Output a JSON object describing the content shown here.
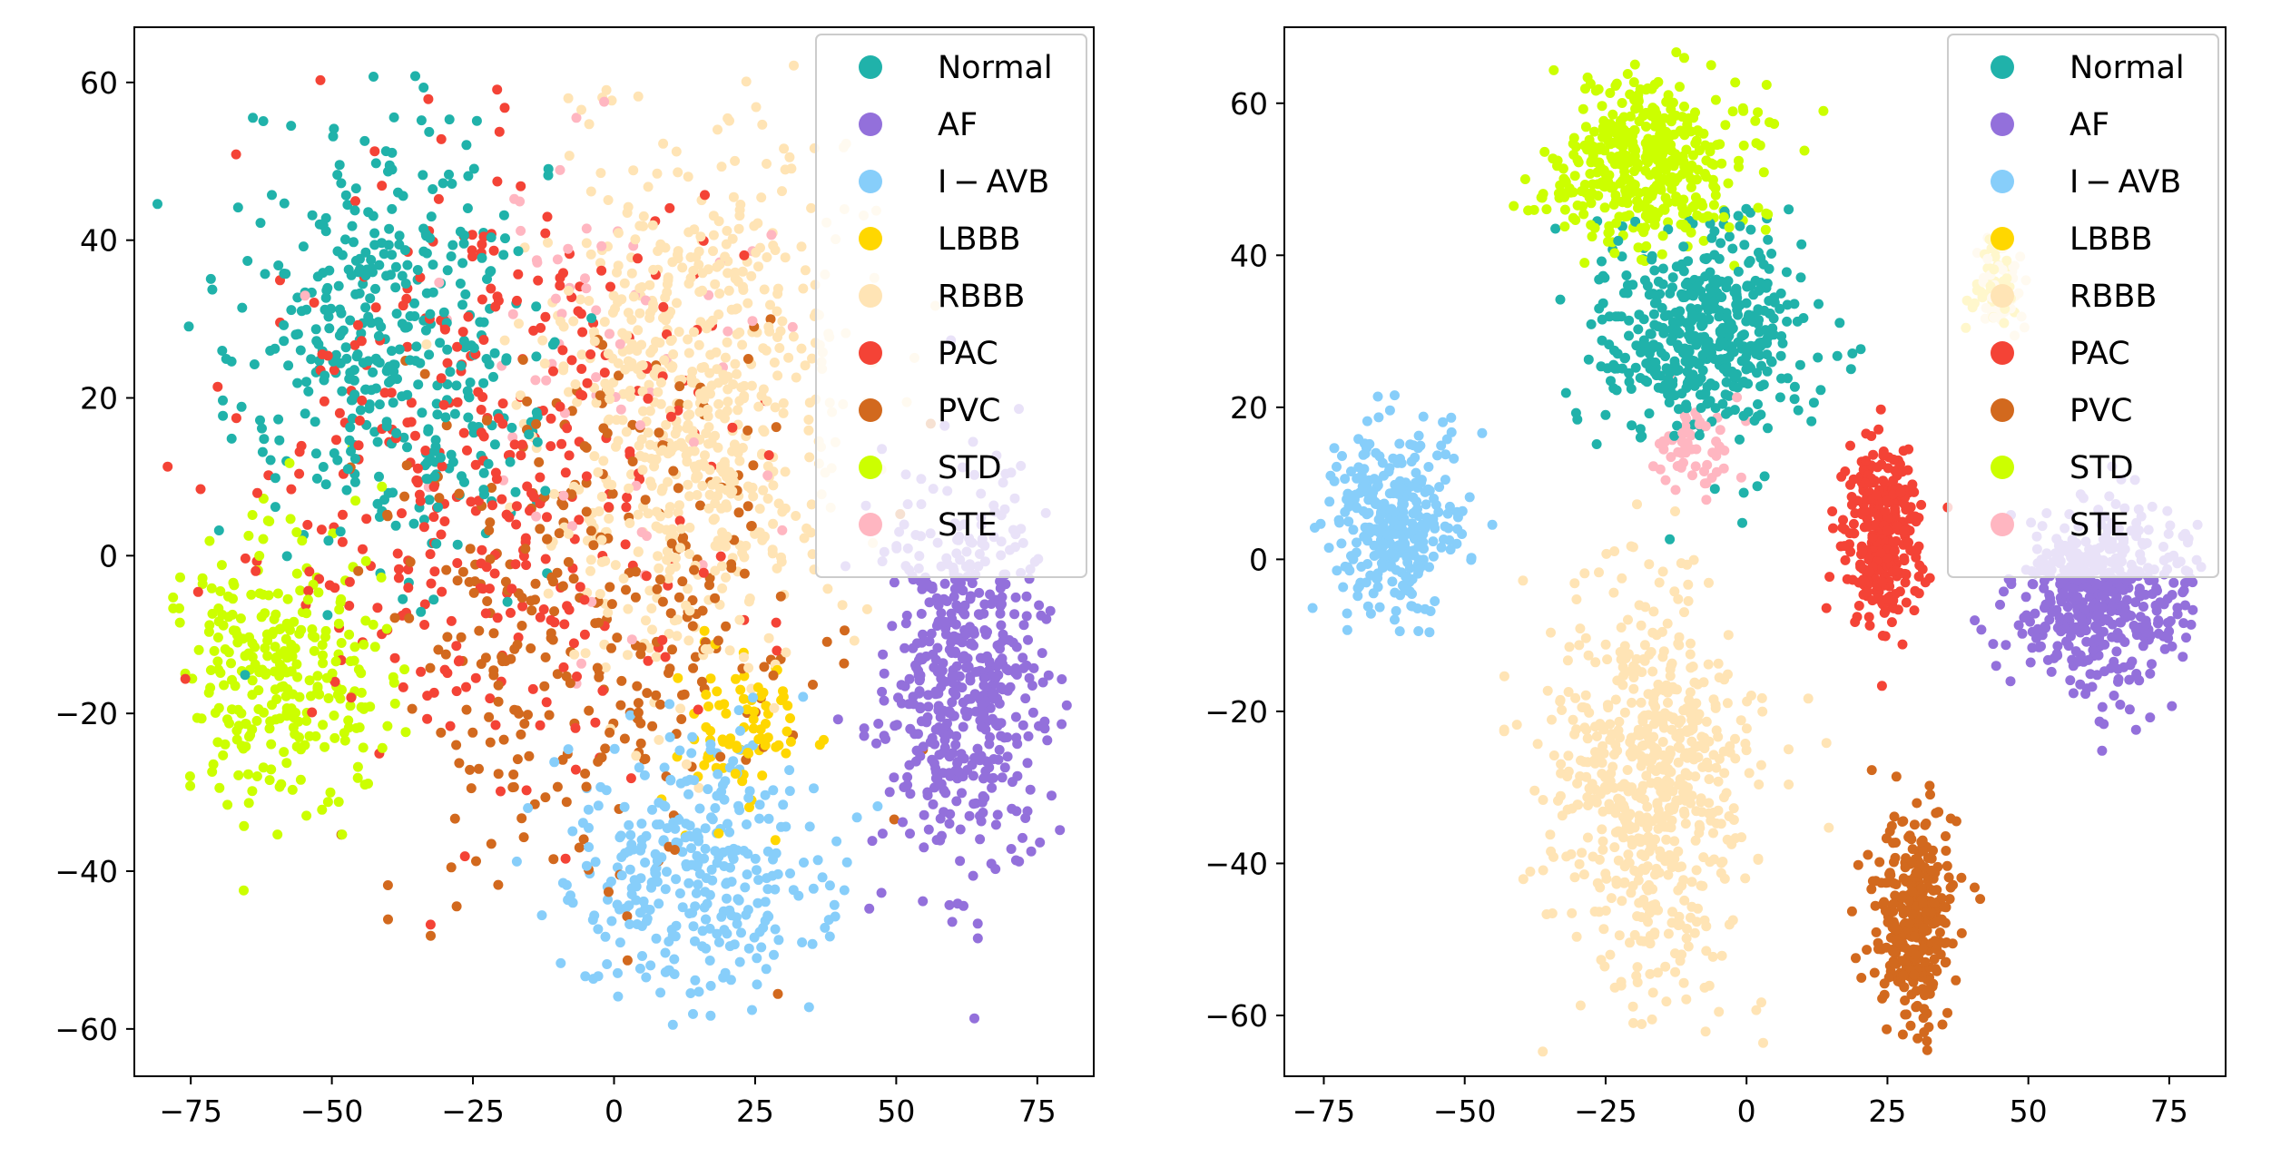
{
  "chart_data": [
    {
      "type": "scatter",
      "title": "",
      "xlabel": "",
      "ylabel": "",
      "xlim": [
        -85,
        85
      ],
      "ylim": [
        -66,
        67
      ],
      "xticks": [
        -75,
        -50,
        -25,
        0,
        25,
        50,
        75
      ],
      "yticks": [
        -60,
        -40,
        -20,
        0,
        20,
        40,
        60
      ],
      "xtick_labels": [
        "−75",
        "−50",
        "−25",
        "0",
        "25",
        "50",
        "75"
      ],
      "ytick_labels": [
        "−60",
        "−40",
        "−20",
        "0",
        "20",
        "40",
        "60"
      ],
      "grid": false,
      "legend": "top-right",
      "series": [
        {
          "name": "Normal",
          "color": "#20b2aa",
          "clusters": [
            {
              "cx": -40,
              "cy": 25,
              "sx": 13,
              "sy": 14,
              "n": 420
            }
          ]
        },
        {
          "name": "AF",
          "color": "#9370db",
          "clusters": [
            {
              "cx": 62,
              "cy": -15,
              "sx": 7,
              "sy": 13,
              "n": 520
            }
          ]
        },
        {
          "name": "I − AVB",
          "color": "#87cefa",
          "clusters": [
            {
              "cx": 15,
              "cy": -40,
              "sx": 12,
              "sy": 9,
              "n": 330
            }
          ]
        },
        {
          "name": "LBBB",
          "color": "#ffd700",
          "clusters": [
            {
              "cx": 22,
              "cy": -22,
              "sx": 5,
              "sy": 5,
              "n": 80
            }
          ]
        },
        {
          "name": "RBBB",
          "color": "#ffe4b5",
          "clusters": [
            {
              "cx": 15,
              "cy": 18,
              "sx": 13,
              "sy": 17,
              "n": 680
            }
          ]
        },
        {
          "name": "PAC",
          "color": "#f44336",
          "clusters": [
            {
              "cx": -25,
              "cy": 12,
              "sx": 20,
              "sy": 20,
              "n": 380
            }
          ]
        },
        {
          "name": "PVC",
          "color": "#d2691e",
          "clusters": [
            {
              "cx": -5,
              "cy": -8,
              "sx": 20,
              "sy": 17,
              "n": 330
            }
          ]
        },
        {
          "name": "STD",
          "color": "#ccff00",
          "clusters": [
            {
              "cx": -58,
              "cy": -14,
              "sx": 9,
              "sy": 9,
              "n": 300
            }
          ]
        },
        {
          "name": "STE",
          "color": "#ffb6c1",
          "clusters": [
            {
              "cx": -5,
              "cy": 25,
              "sx": 15,
              "sy": 18,
              "n": 70
            }
          ]
        }
      ]
    },
    {
      "type": "scatter",
      "title": "",
      "xlabel": "",
      "ylabel": "",
      "xlim": [
        -82,
        85
      ],
      "ylim": [
        -68,
        70
      ],
      "xticks": [
        -75,
        -50,
        -25,
        0,
        25,
        50,
        75
      ],
      "yticks": [
        -60,
        -40,
        -20,
        0,
        20,
        40,
        60
      ],
      "xtick_labels": [
        "−75",
        "−50",
        "−25",
        "0",
        "25",
        "50",
        "75"
      ],
      "ytick_labels": [
        "−60",
        "−40",
        "−20",
        "0",
        "20",
        "40",
        "60"
      ],
      "grid": false,
      "legend": "top-right",
      "series": [
        {
          "name": "Normal",
          "color": "#20b2aa",
          "clusters": [
            {
              "cx": -8,
              "cy": 30,
              "sx": 9,
              "sy": 7,
              "n": 480
            }
          ]
        },
        {
          "name": "AF",
          "color": "#9370db",
          "clusters": [
            {
              "cx": 63,
              "cy": -5,
              "sx": 8,
              "sy": 6,
              "n": 470
            }
          ]
        },
        {
          "name": "I − AVB",
          "color": "#87cefa",
          "clusters": [
            {
              "cx": -62,
              "cy": 4,
              "sx": 6,
              "sy": 6,
              "n": 330
            }
          ]
        },
        {
          "name": "LBBB",
          "color": "#ffd700",
          "clusters": [
            {
              "cx": 44,
              "cy": 36,
              "sx": 2,
              "sy": 3,
              "n": 40
            }
          ]
        },
        {
          "name": "RBBB",
          "color": "#ffe4b5",
          "clusters": [
            {
              "cx": -17,
              "cy": -30,
              "sx": 9,
              "sy": 13,
              "n": 640
            },
            {
              "cx": 45,
              "cy": 35,
              "sx": 2,
              "sy": 3,
              "n": 50
            }
          ]
        },
        {
          "name": "PAC",
          "color": "#f44336",
          "clusters": [
            {
              "cx": 24,
              "cy": 3,
              "sx": 3.5,
              "sy": 6,
              "n": 330
            }
          ]
        },
        {
          "name": "PVC",
          "color": "#d2691e",
          "clusters": [
            {
              "cx": 30,
              "cy": -48,
              "sx": 3.5,
              "sy": 7,
              "n": 330
            }
          ]
        },
        {
          "name": "STD",
          "color": "#ccff00",
          "clusters": [
            {
              "cx": -18,
              "cy": 52,
              "sx": 9,
              "sy": 6,
              "n": 430
            }
          ]
        },
        {
          "name": "STE",
          "color": "#ffb6c1",
          "clusters": [
            {
              "cx": -10,
              "cy": 14,
              "sx": 4,
              "sy": 3,
              "n": 60
            }
          ]
        }
      ]
    }
  ]
}
